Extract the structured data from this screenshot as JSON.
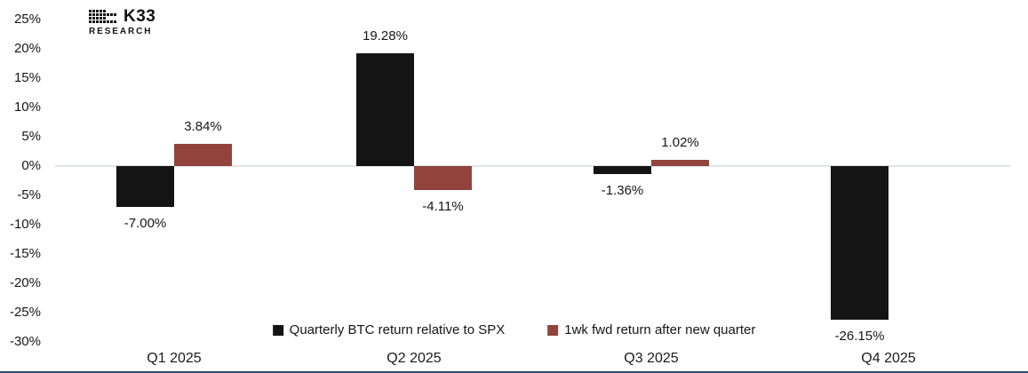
{
  "logo": {
    "brand": "K33",
    "sub": "RESEARCH"
  },
  "colors": {
    "background": "#ffffff",
    "bar_black": "#141414",
    "bar_red": "#92443C",
    "zero_line": "#e1e4e4",
    "bottom_border": "#2B4B70",
    "text": "#161616"
  },
  "chart_data": {
    "type": "bar",
    "title": "",
    "categories": [
      "Q1 2025",
      "Q2 2025",
      "Q3 2025",
      "Q4 2025"
    ],
    "series": [
      {
        "name": "Quarterly BTC return relative to SPX",
        "color": "#141414",
        "values": [
          -7.0,
          19.28,
          -1.36,
          -26.15
        ],
        "labels": [
          "-7.00%",
          "19.28%",
          "-1.36%",
          "-26.15%"
        ]
      },
      {
        "name": "1wk fwd return after new quarter",
        "color": "#92443C",
        "values": [
          3.84,
          -4.11,
          1.02,
          null
        ],
        "labels": [
          "3.84%",
          "-4.11%",
          "1.02%",
          null
        ]
      }
    ],
    "y_ticks": [
      {
        "value": 25,
        "label": "25%"
      },
      {
        "value": 20,
        "label": "20%"
      },
      {
        "value": 15,
        "label": "15%"
      },
      {
        "value": 10,
        "label": "10%"
      },
      {
        "value": 5,
        "label": "5%"
      },
      {
        "value": 0,
        "label": "0%"
      },
      {
        "value": -5,
        "label": "-5%"
      },
      {
        "value": -10,
        "label": "-10%"
      },
      {
        "value": -15,
        "label": "-15%"
      },
      {
        "value": -20,
        "label": "-20%"
      },
      {
        "value": -25,
        "label": "-25%"
      },
      {
        "value": -30,
        "label": "-30%"
      }
    ],
    "ylim": [
      -30,
      25
    ],
    "xlabel": "",
    "ylabel": "",
    "grid": "zero-line-only",
    "legend_position": "bottom-center"
  }
}
